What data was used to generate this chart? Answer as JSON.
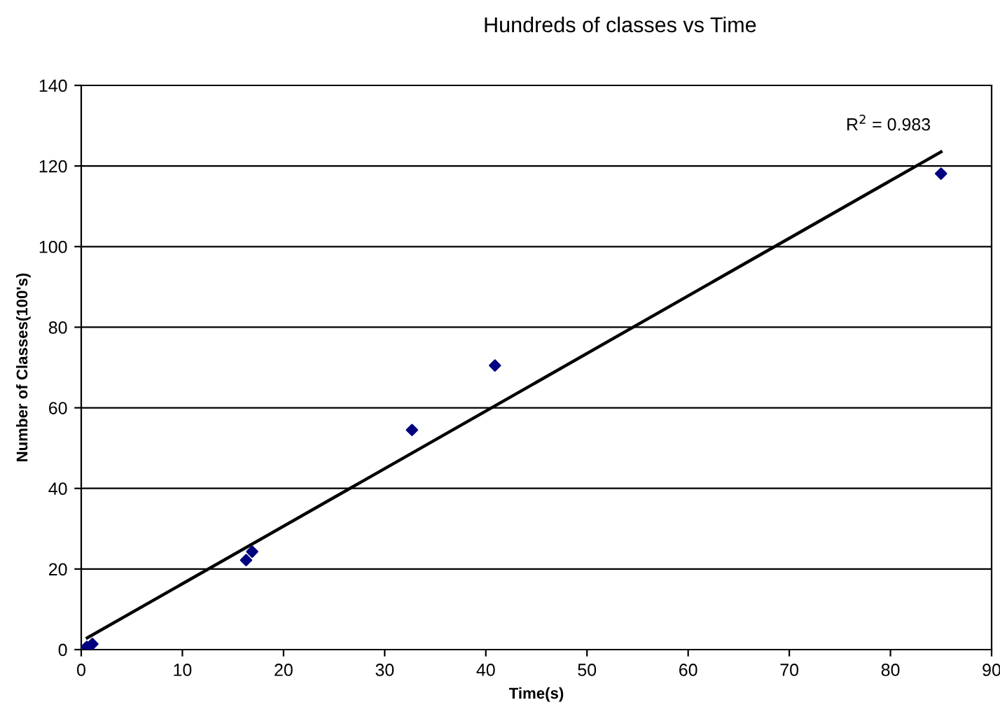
{
  "chart_data": {
    "type": "scatter",
    "title": "Hundreds of classes vs Time",
    "xlabel": "Time(s)",
    "ylabel": "Number of Classes(100's)",
    "series": [
      {
        "color": "#000080",
        "marker": "diamond",
        "x": [
          0.55,
          1.1,
          16.3,
          16.9,
          32.7,
          40.9,
          85.0
        ],
        "values": [
          0.7,
          1.4,
          22.2,
          24.3,
          54.5,
          70.5,
          118.1
        ]
      },
      {
        "type": "line",
        "marker": "none",
        "color": "#000000",
        "x": [
          0.6,
          85.0
        ],
        "values": [
          2.9,
          123.5
        ]
      }
    ],
    "annotations": [
      "R$^{2}$ = 0.983"
    ],
    "xlim": [
      0,
      90
    ],
    "xticks": [
      0,
      10,
      20,
      30,
      40,
      50,
      60,
      70,
      80,
      90
    ],
    "ylim": [
      0,
      140
    ],
    "yticks": [
      0,
      20,
      40,
      60,
      80,
      100,
      120,
      140
    ],
    "grid": "y",
    "line_style": "solid"
  }
}
